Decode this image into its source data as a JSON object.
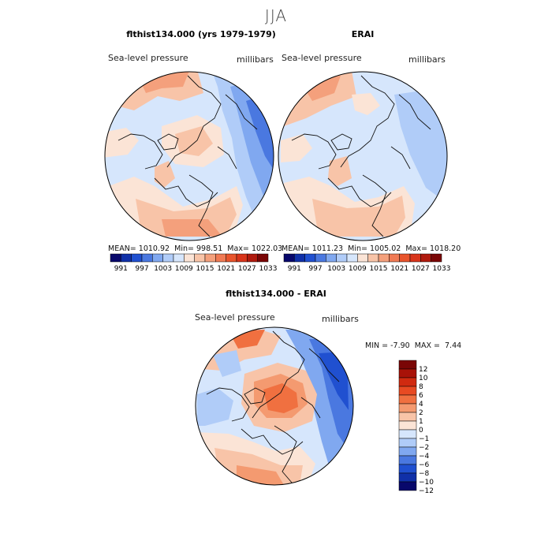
{
  "season": "JJA",
  "panels": [
    {
      "title": "flthist134.000 (yrs 1979-1979)",
      "variable": "Sea-level pressure",
      "units": "millibars",
      "stats": {
        "mean_label": "MEAN=",
        "mean": "1010.92",
        "min_label": "Min=",
        "min": "998.51",
        "max_label": "Max=",
        "max": "1022.03"
      }
    },
    {
      "title": "ERAI",
      "variable": "Sea-level pressure",
      "units": "millibars",
      "stats": {
        "mean_label": "MEAN=",
        "mean": "1011.23",
        "min_label": "Min=",
        "min": "1005.02",
        "max_label": "Max=",
        "max": "1018.20"
      }
    },
    {
      "title": "flthist134.000 - ERAI",
      "variable": "Sea-level pressure",
      "units": "millibars",
      "stats": {
        "min_label": "MIN =",
        "min": "-7.90",
        "max_label": "MAX =",
        "max": "7.44"
      }
    }
  ],
  "chart_data": [
    {
      "type": "heatmap",
      "projection": "north-polar-stereographic",
      "title": "flthist134.000 (yrs 1979-1979)",
      "colorbar": {
        "orientation": "horizontal",
        "ticks": [
          "991",
          "997",
          "1003",
          "1009",
          "1015",
          "1021",
          "1027",
          "1033"
        ],
        "colors": [
          "#08086b",
          "#1030a8",
          "#2050d0",
          "#4a78e0",
          "#80a8f0",
          "#b0ccf8",
          "#d6e6fc",
          "#fbe4d6",
          "#f8c4a8",
          "#f4a07c",
          "#f07a54",
          "#e8542c",
          "#d8341a",
          "#b01a0e",
          "#7a0606"
        ]
      }
    },
    {
      "type": "heatmap",
      "projection": "north-polar-stereographic",
      "title": "ERAI",
      "colorbar": {
        "orientation": "horizontal",
        "ticks": [
          "991",
          "997",
          "1003",
          "1009",
          "1015",
          "1021",
          "1027",
          "1033"
        ],
        "colors": [
          "#08086b",
          "#1030a8",
          "#2050d0",
          "#4a78e0",
          "#80a8f0",
          "#b0ccf8",
          "#d6e6fc",
          "#fbe4d6",
          "#f8c4a8",
          "#f4a07c",
          "#f07a54",
          "#e8542c",
          "#d8341a",
          "#b01a0e",
          "#7a0606"
        ]
      }
    },
    {
      "type": "heatmap",
      "projection": "north-polar-stereographic",
      "title": "flthist134.000 - ERAI",
      "colorbar": {
        "orientation": "vertical",
        "ticks": [
          "12",
          "10",
          "8",
          "6",
          "4",
          "2",
          "1",
          "0",
          "−1",
          "−2",
          "−4",
          "−6",
          "−8",
          "−10",
          "−12"
        ],
        "colors": [
          "#7a0606",
          "#a81208",
          "#d02a10",
          "#e84a22",
          "#f07040",
          "#f49a70",
          "#f8c4a8",
          "#fbe4d6",
          "#d6e6fc",
          "#b0ccf8",
          "#80a8f0",
          "#4a78e0",
          "#2050d0",
          "#1030a8",
          "#08086b"
        ]
      }
    }
  ]
}
